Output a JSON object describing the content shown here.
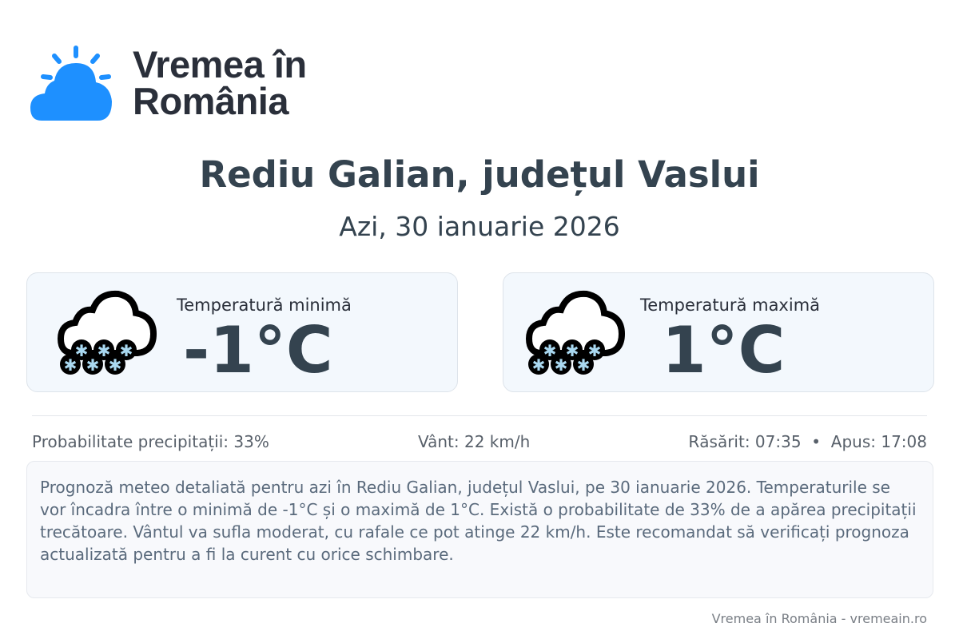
{
  "brand": {
    "line1": "Vremea în",
    "line2": "România",
    "color": "#1e90ff"
  },
  "title": "Rediu Galian, județul Vaslui",
  "date": "Azi, 30 ianuarie 2026",
  "min": {
    "label": "Temperatură minimă",
    "value": "-1°C",
    "icon": "snow-cloud-icon"
  },
  "max": {
    "label": "Temperatură maximă",
    "value": "1°C",
    "icon": "snow-cloud-icon"
  },
  "stats": {
    "precip": "Probabilitate precipitații: 33%",
    "wind": "Vânt: 22 km/h",
    "sun": "Răsărit: 07:35  •  Apus: 17:08"
  },
  "description": "Prognoză meteo detaliată pentru azi în Rediu Galian, județul Vaslui, pe 30 ianuarie 2026. Temperaturile se vor încadra între o minimă de -1°C și o maximă de 1°C. Există o probabilitate de 33% de a apărea precipitații trecătoare. Vântul va sufla moderat, cu rafale ce pot atinge 22 km/h. Este recomandat să verificați prognoza actualizată pentru a fi la curent cu orice schimbare.",
  "footer": "Vremea în România - vremeain.ro"
}
